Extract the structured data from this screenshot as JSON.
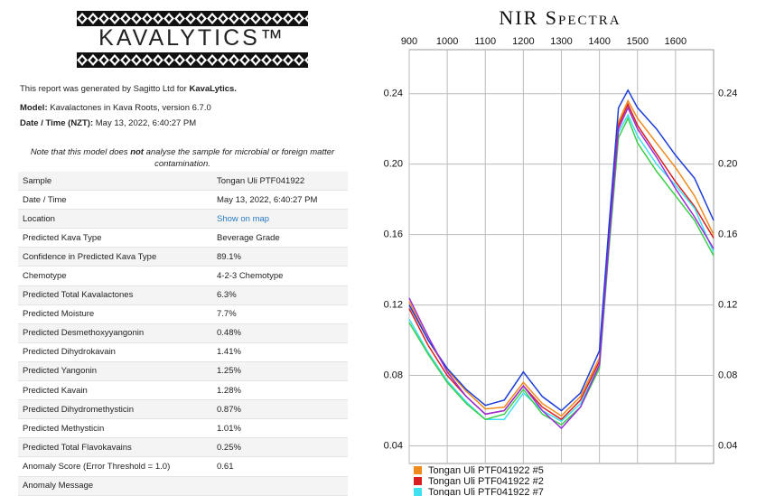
{
  "header": {
    "logo": "KAVALYTICS™"
  },
  "report": {
    "intro": "This report was generated by Sagitto Ltd for ",
    "intro_brand": "KavaLytics.",
    "model_label": "Model:",
    "model_value": "Kavalactones in Kava Roots, version 6.7.0",
    "date_label": "Date / Time (NZT):",
    "date_value": "May 13, 2022, 6:40:27 PM",
    "note_start": "Note that this model does ",
    "note_bold": "not",
    "note_end": " analyse the sample for microbial or foreign matter contamination."
  },
  "table": {
    "rows": [
      [
        "Sample",
        "Tongan Uli PTF041922"
      ],
      [
        "Date / Time",
        "May 13, 2022, 6:40:27 PM"
      ],
      [
        "Location",
        "Show on map"
      ],
      [
        "Predicted Kava Type",
        "Beverage Grade"
      ],
      [
        "Confidence in Predicted Kava Type",
        "89.1%"
      ],
      [
        "Chemotype",
        "4-2-3 Chemotype"
      ],
      [
        "Predicted Total Kavalactones",
        "6.3%"
      ],
      [
        "Predicted Moisture",
        "7.7%"
      ],
      [
        "Predicted Desmethoxyyangonin",
        "0.48%"
      ],
      [
        "Predicted Dihydrokavain",
        "1.41%"
      ],
      [
        "Predicted Yangonin",
        "1.25%"
      ],
      [
        "Predicted Kavain",
        "1.28%"
      ],
      [
        "Predicted Dihydromethysticin",
        "0.87%"
      ],
      [
        "Predicted Methysticin",
        "1.01%"
      ],
      [
        "Predicted Total Flavokavains",
        "0.25%"
      ],
      [
        "Anomaly Score (Error Threshold = 1.0)",
        "0.61"
      ],
      [
        "Anomaly Message",
        ""
      ]
    ]
  },
  "chart_data": {
    "type": "line",
    "title": "NIR Spectra",
    "x": [
      900,
      950,
      1000,
      1050,
      1100,
      1150,
      1200,
      1250,
      1300,
      1350,
      1400,
      1425,
      1450,
      1475,
      1500,
      1550,
      1600,
      1650,
      1700
    ],
    "xlim": [
      900,
      1700
    ],
    "xticks": [
      900,
      1000,
      1100,
      1200,
      1300,
      1400,
      1500,
      1600
    ],
    "ylim": [
      0.03,
      0.265
    ],
    "yticks": [
      0.04,
      0.08,
      0.12,
      0.16,
      {
        "value": 0.2,
        "label": "0.20"
      },
      0.24
    ],
    "grid": true,
    "series": [
      {
        "name": "Tongan Uli PTF041922 #5",
        "color": "#f08a1c",
        "values": [
          0.122,
          0.1,
          0.083,
          0.071,
          0.061,
          0.062,
          0.076,
          0.064,
          0.057,
          0.068,
          0.09,
          0.16,
          0.224,
          0.236,
          0.226,
          0.212,
          0.198,
          0.182,
          0.16
        ]
      },
      {
        "name": "Tongan Uli PTF041922 #2",
        "color": "#d81e1e",
        "values": [
          0.118,
          0.097,
          0.08,
          0.068,
          0.058,
          0.06,
          0.074,
          0.062,
          0.055,
          0.066,
          0.088,
          0.158,
          0.222,
          0.234,
          0.222,
          0.206,
          0.19,
          0.176,
          0.158
        ]
      },
      {
        "name": "Tongan Uli PTF041922 #7",
        "color": "#3fe0f0",
        "values": [
          0.112,
          0.093,
          0.077,
          0.065,
          0.055,
          0.055,
          0.07,
          0.06,
          0.054,
          0.064,
          0.086,
          0.155,
          0.218,
          0.228,
          0.216,
          0.2,
          0.188,
          0.175,
          0.15
        ]
      },
      {
        "color": "#1c3ed8",
        "values": [
          0.12,
          0.1,
          0.084,
          0.072,
          0.063,
          0.066,
          0.082,
          0.068,
          0.06,
          0.07,
          0.094,
          0.165,
          0.232,
          0.242,
          0.232,
          0.22,
          0.205,
          0.192,
          0.168
        ]
      },
      {
        "color": "#3ccf4a",
        "values": [
          0.11,
          0.092,
          0.076,
          0.064,
          0.055,
          0.058,
          0.072,
          0.058,
          0.052,
          0.062,
          0.084,
          0.152,
          0.215,
          0.226,
          0.212,
          0.196,
          0.182,
          0.168,
          0.148
        ]
      },
      {
        "color": "#9a2ed8",
        "values": [
          0.124,
          0.102,
          0.082,
          0.068,
          0.058,
          0.06,
          0.074,
          0.06,
          0.05,
          0.062,
          0.086,
          0.156,
          0.22,
          0.232,
          0.22,
          0.204,
          0.186,
          0.17,
          0.152
        ]
      }
    ]
  }
}
